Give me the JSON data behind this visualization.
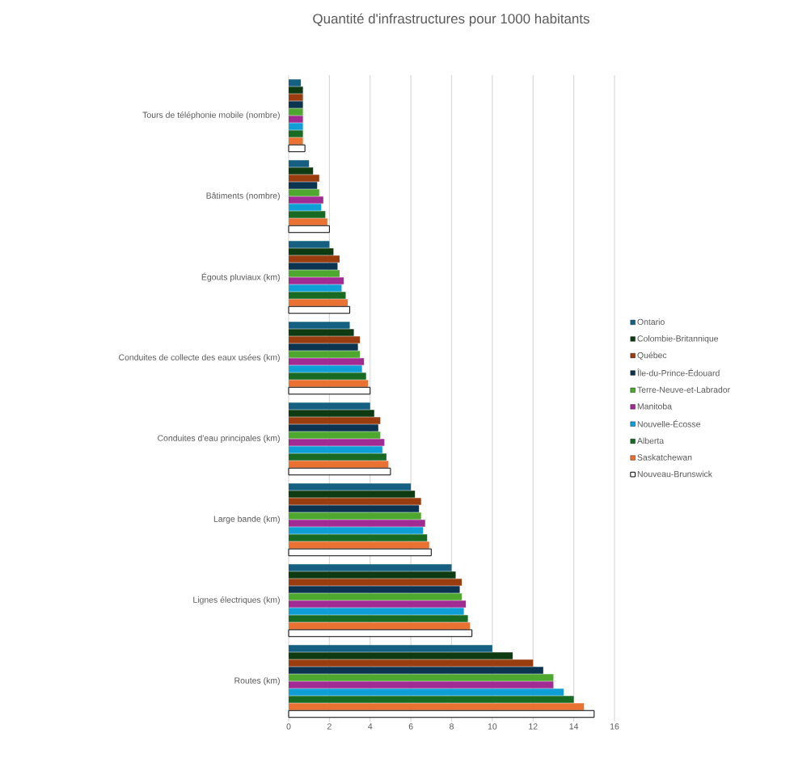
{
  "chart_data": {
    "type": "bar",
    "orientation": "horizontal",
    "title": "Quantité d'infrastructures pour 1000 habitants",
    "categories": [
      "Tours de téléphonie mobile (nombre)",
      "Bâtiments (nombre)",
      "Égouts pluviaux (km)",
      "Conduites de collecte des eaux usées (km)",
      "Conduites d'eau principales (km)",
      "Large bande (km)",
      "Lignes électriques (km)",
      "Routes (km)"
    ],
    "series": [
      {
        "name": "Ontario",
        "color": "#156082",
        "values": [
          0.6,
          1.0,
          2.0,
          3.0,
          4.0,
          6.0,
          8.0,
          10.0
        ]
      },
      {
        "name": "Colombie-Britannique",
        "color": "#0e3b12",
        "values": [
          0.7,
          1.2,
          2.2,
          3.2,
          4.2,
          6.2,
          8.2,
          11.0
        ]
      },
      {
        "name": "Québec",
        "color": "#993c10",
        "values": [
          0.7,
          1.5,
          2.5,
          3.5,
          4.5,
          6.5,
          8.5,
          12.0
        ]
      },
      {
        "name": "Île-du-Prince-Édouard",
        "color": "#0b3450",
        "values": [
          0.7,
          1.4,
          2.4,
          3.4,
          4.4,
          6.4,
          8.4,
          12.5
        ]
      },
      {
        "name": "Terre-Neuve-et-Labrador",
        "color": "#4ea72e",
        "values": [
          0.7,
          1.5,
          2.5,
          3.5,
          4.5,
          6.5,
          8.5,
          13.0
        ]
      },
      {
        "name": "Manitoba",
        "color": "#a02b93",
        "values": [
          0.7,
          1.7,
          2.7,
          3.7,
          4.7,
          6.7,
          8.7,
          13.0
        ]
      },
      {
        "name": "Nouvelle-Écosse",
        "color": "#0f9ed5",
        "values": [
          0.7,
          1.6,
          2.6,
          3.6,
          4.6,
          6.6,
          8.6,
          13.5
        ]
      },
      {
        "name": "Alberta",
        "color": "#196b24",
        "values": [
          0.7,
          1.8,
          2.8,
          3.8,
          4.8,
          6.8,
          8.8,
          14.0
        ]
      },
      {
        "name": "Saskatchewan",
        "color": "#e97132",
        "values": [
          0.7,
          1.9,
          2.9,
          3.9,
          4.9,
          6.9,
          8.9,
          14.5
        ]
      },
      {
        "name": "Nouveau-Brunswick",
        "color": "#ffffff",
        "values": [
          0.8,
          2.0,
          3.0,
          4.0,
          5.0,
          7.0,
          9.0,
          15.0
        ]
      }
    ],
    "xlim": [
      0,
      16
    ],
    "xticks": [
      0,
      2,
      4,
      6,
      8,
      10,
      12,
      14,
      16
    ],
    "grid": "x",
    "legend": "right"
  }
}
